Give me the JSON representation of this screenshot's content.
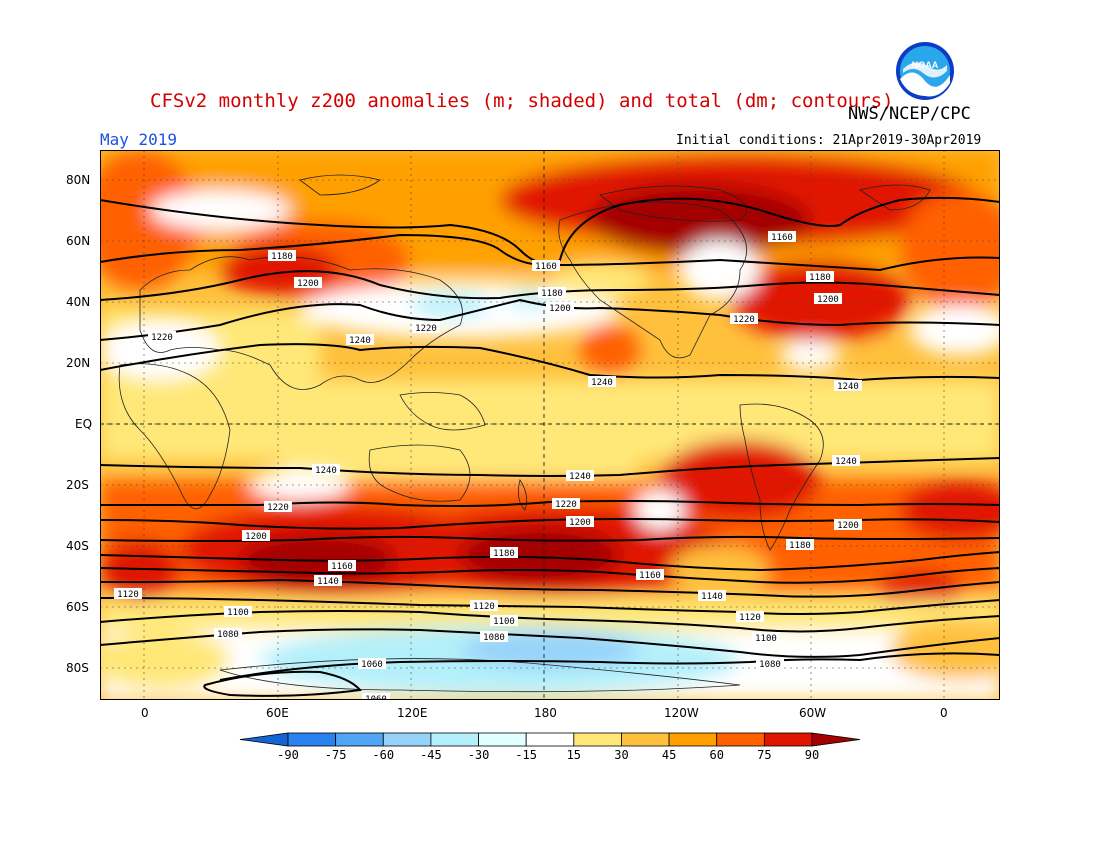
{
  "header": {
    "title": "CFSv2 monthly z200 anomalies (m; shaded) and total (dm; contours)",
    "agency": "NWS/NCEP/CPC",
    "month": "May 2019",
    "initial_conditions": "Initial conditions: 21Apr2019-30Apr2019",
    "logo_text": "NOAA"
  },
  "map": {
    "lat_labels": [
      "80N",
      "60N",
      "40N",
      "20N",
      "EQ",
      "20S",
      "40S",
      "60S",
      "80S"
    ],
    "lon_labels": [
      "0",
      "60E",
      "120E",
      "180",
      "120W",
      "60W",
      "0"
    ],
    "contour_labels": [
      "1180",
      "1200",
      "1220",
      "1240",
      "1160",
      "1180",
      "1200",
      "1220",
      "1160",
      "1180",
      "1200",
      "1220",
      "1240",
      "1240",
      "1240",
      "1240",
      "1240",
      "1220",
      "1220",
      "1200",
      "1200",
      "1200",
      "1180",
      "1160",
      "1180",
      "1140",
      "1160",
      "1140",
      "1120",
      "1120",
      "1100",
      "1100",
      "1120",
      "1100",
      "1080",
      "1080",
      "1080",
      "1060",
      "1060",
      "1180",
      "1200",
      "1220",
      "1240"
    ]
  },
  "colorbar": {
    "ticks": [
      "-90",
      "-75",
      "-60",
      "-45",
      "-30",
      "-15",
      "15",
      "30",
      "45",
      "60",
      "75",
      "90"
    ],
    "colors": [
      "#1464d2",
      "#2882f0",
      "#50a5f5",
      "#96d2fa",
      "#b4f0fa",
      "#e1ffff",
      "#ffffff",
      "#ffe878",
      "#ffc03c",
      "#ffa000",
      "#ff6000",
      "#e11400",
      "#a50000"
    ]
  }
}
